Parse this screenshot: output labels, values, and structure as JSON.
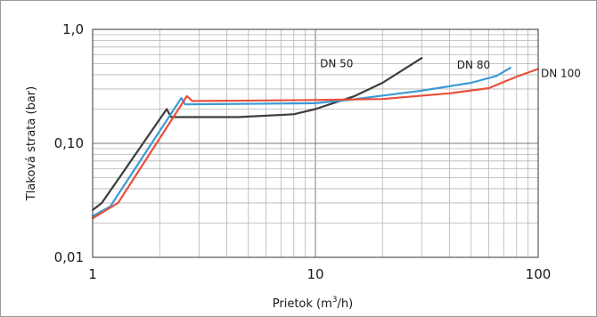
{
  "chart_data": {
    "type": "line",
    "xlabel": "Prietok (m³/h)",
    "xlabel_main": "Prietok (m",
    "xlabel_sup": "3",
    "xlabel_tail": "/h)",
    "ylabel": "Tlaková strata (bar)",
    "xscale": "log",
    "yscale": "log",
    "xlim": [
      1,
      100
    ],
    "ylim": [
      0.01,
      1.0
    ],
    "grid": true,
    "x_ticks": [
      1,
      10,
      100
    ],
    "x_tick_labels": [
      "1",
      "10",
      "100"
    ],
    "y_ticks": [
      0.01,
      0.1,
      1.0
    ],
    "y_tick_labels": [
      "0,01",
      "0,10",
      "1,0"
    ],
    "series": [
      {
        "name": "DN 50",
        "color": "#3c3c3c",
        "points": [
          [
            1.0,
            0.026
          ],
          [
            1.1,
            0.03
          ],
          [
            2.15,
            0.2
          ],
          [
            2.25,
            0.17
          ],
          [
            4.5,
            0.17
          ],
          [
            8.0,
            0.18
          ],
          [
            10.0,
            0.2
          ],
          [
            15.0,
            0.26
          ],
          [
            20.0,
            0.34
          ],
          [
            30.0,
            0.56
          ]
        ]
      },
      {
        "name": "DN 80",
        "color": "#3a9ad6",
        "points": [
          [
            1.0,
            0.023
          ],
          [
            1.2,
            0.028
          ],
          [
            2.5,
            0.25
          ],
          [
            2.6,
            0.22
          ],
          [
            10.0,
            0.225
          ],
          [
            14.0,
            0.24
          ],
          [
            30.0,
            0.29
          ],
          [
            50.0,
            0.34
          ],
          [
            65.0,
            0.39
          ],
          [
            75.0,
            0.46
          ]
        ]
      },
      {
        "name": "DN 100",
        "color": "#e8503a",
        "points": [
          [
            1.0,
            0.022
          ],
          [
            1.3,
            0.03
          ],
          [
            2.65,
            0.26
          ],
          [
            2.8,
            0.235
          ],
          [
            10.0,
            0.24
          ],
          [
            20.0,
            0.245
          ],
          [
            40.0,
            0.275
          ],
          [
            60.0,
            0.305
          ],
          [
            80.0,
            0.385
          ],
          [
            100.0,
            0.45
          ]
        ]
      }
    ],
    "annotations": [
      {
        "text": "DN 50",
        "x": 10.2,
        "y": 0.5
      },
      {
        "text": "DN 80",
        "x": 42.0,
        "y": 0.485
      },
      {
        "text": "DN 100",
        "x": 100.0,
        "y": 0.41
      }
    ]
  }
}
